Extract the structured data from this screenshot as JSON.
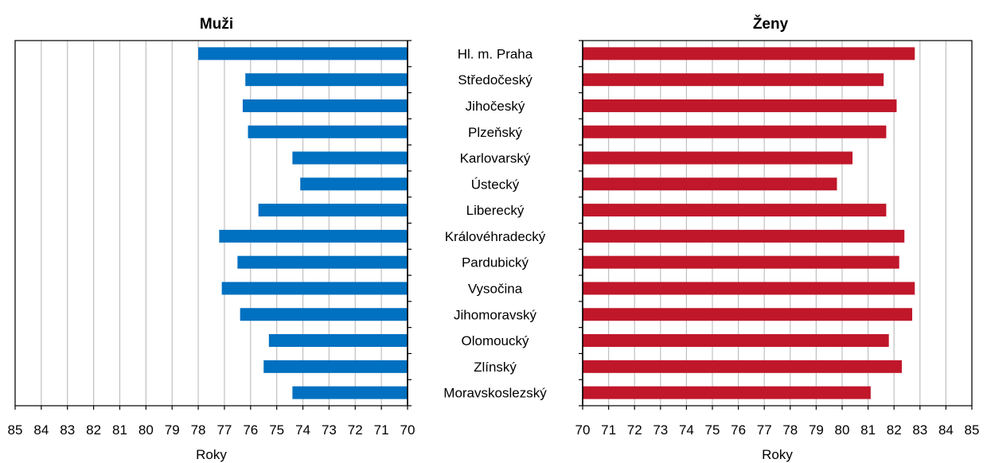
{
  "chart_data": [
    {
      "type": "bar",
      "orientation": "horizontal",
      "title": "Muži",
      "xlabel": "Roky",
      "xlim": [
        70,
        85
      ],
      "x_reversed": true,
      "grid": true,
      "color": "#0070C0",
      "categories": [
        "Hl. m. Praha",
        "Středočeský",
        "Jihočeský",
        "Plzeňský",
        "Karlovarský",
        "Ústecký",
        "Liberecký",
        "Královéhradecký",
        "Pardubický",
        "Vysočina",
        "Jihomoravský",
        "Olomoucký",
        "Zlínský",
        "Moravskoslezský"
      ],
      "values": [
        78.0,
        76.2,
        76.3,
        76.1,
        74.4,
        74.1,
        75.7,
        77.2,
        76.5,
        77.1,
        76.4,
        75.3,
        75.5,
        74.4
      ]
    },
    {
      "type": "bar",
      "orientation": "horizontal",
      "title": "Ženy",
      "xlabel": "Roky",
      "xlim": [
        70,
        85
      ],
      "x_reversed": false,
      "grid": true,
      "color": "#C0172A",
      "categories": [
        "Hl. m. Praha",
        "Středočeský",
        "Jihočeský",
        "Plzeňský",
        "Karlovarský",
        "Ústecký",
        "Liberecký",
        "Královéhradecký",
        "Pardubický",
        "Vysočina",
        "Jihomoravský",
        "Olomoucký",
        "Zlínský",
        "Moravskoslezský"
      ],
      "values": [
        82.8,
        81.6,
        82.1,
        81.7,
        80.4,
        79.8,
        81.7,
        82.4,
        82.2,
        82.8,
        82.7,
        81.8,
        82.3,
        81.1
      ]
    }
  ]
}
